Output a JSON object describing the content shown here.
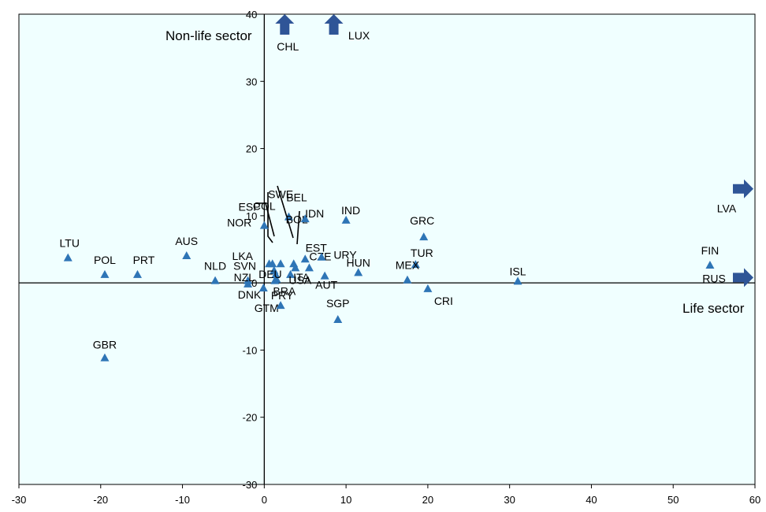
{
  "chart_data": {
    "type": "scatter",
    "xlim": [
      -30,
      60
    ],
    "ylim": [
      -30,
      40
    ],
    "x_ticks": [
      -30,
      -20,
      -10,
      0,
      10,
      20,
      30,
      40,
      50,
      60
    ],
    "y_ticks": [
      40,
      30,
      20,
      10,
      0,
      -10,
      -20,
      -30
    ],
    "x_axis_title": "Life sector",
    "y_axis_title": "Non-life sector",
    "grid": false,
    "colors": {
      "background": "#f0ffff",
      "marker": "#2e75b6",
      "arrow": "#2f5597",
      "axis": "#000000"
    },
    "points": [
      {
        "label": "LTU",
        "x": -24.0,
        "y": 3.7
      },
      {
        "label": "POL",
        "x": -19.5,
        "y": 1.2
      },
      {
        "label": "PRT",
        "x": -15.5,
        "y": 1.2
      },
      {
        "label": "AUS",
        "x": -9.5,
        "y": 4.0
      },
      {
        "label": "NLD",
        "x": -6.0,
        "y": 0.3
      },
      {
        "label": "SVN",
        "x": -2.0,
        "y": 0.3
      },
      {
        "label": "DNK",
        "x": -2.0,
        "y": -0.2
      },
      {
        "label": "GTM",
        "x": -0.1,
        "y": -0.8
      },
      {
        "label": "COL",
        "x": 0.0,
        "y": 8.5
      },
      {
        "label": "ESP",
        "x": 0.6,
        "y": 2.8
      },
      {
        "label": "NOR",
        "x": 1.0,
        "y": 2.8
      },
      {
        "label": "LKA",
        "x": 1.2,
        "y": 1.8
      },
      {
        "label": "NZL",
        "x": 1.4,
        "y": 1.2
      },
      {
        "label": "DEU",
        "x": 1.5,
        "y": 0.5
      },
      {
        "label": "BRA",
        "x": 1.3,
        "y": 0.3
      },
      {
        "label": "SWE",
        "x": 2.0,
        "y": 2.8
      },
      {
        "label": "BEL",
        "x": 3.0,
        "y": 9.8
      },
      {
        "label": "BOL",
        "x": 3.6,
        "y": 2.8
      },
      {
        "label": "ITA",
        "x": 3.2,
        "y": 1.2
      },
      {
        "label": "USA",
        "x": 3.8,
        "y": 2.2
      },
      {
        "label": "IDN",
        "x": 5.0,
        "y": 9.5
      },
      {
        "label": "EST",
        "x": 5.0,
        "y": 3.5
      },
      {
        "label": "CZE",
        "x": 5.5,
        "y": 2.2
      },
      {
        "label": "URY",
        "x": 7.0,
        "y": 3.8
      },
      {
        "label": "AUT",
        "x": 7.4,
        "y": 1.0
      },
      {
        "label": "IND",
        "x": 10.0,
        "y": 9.3
      },
      {
        "label": "HUN",
        "x": 11.5,
        "y": 1.5
      },
      {
        "label": "SGP",
        "x": 9.0,
        "y": -5.5
      },
      {
        "label": "PRY",
        "x": 2.0,
        "y": -3.4
      },
      {
        "label": "GRC",
        "x": 19.5,
        "y": 6.8
      },
      {
        "label": "TUR",
        "x": 18.5,
        "y": 2.7
      },
      {
        "label": "MEX",
        "x": 17.5,
        "y": 0.4
      },
      {
        "label": "CRI",
        "x": 20.0,
        "y": -0.9
      },
      {
        "label": "ISL",
        "x": 31.0,
        "y": 0.2
      },
      {
        "label": "FIN",
        "x": 54.5,
        "y": 2.6
      },
      {
        "label": "GBR",
        "x": -19.5,
        "y": -11.2
      }
    ],
    "off_scale": [
      {
        "label": "CHL",
        "direction": "up",
        "x": 2.5
      },
      {
        "label": "LUX",
        "direction": "up",
        "x": 8.5
      },
      {
        "label": "LVA",
        "direction": "right",
        "y": 14.0
      },
      {
        "label": "RUS",
        "direction": "right",
        "y": 0.8
      }
    ]
  }
}
